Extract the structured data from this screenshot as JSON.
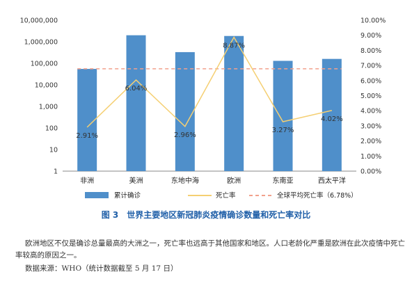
{
  "chart_data": {
    "type": "bar",
    "categories": [
      "非洲",
      "美洲",
      "东地中海",
      "欧洲",
      "东南亚",
      "西太平洋"
    ],
    "series": [
      {
        "name": "累计确诊",
        "type": "bar",
        "axis": "left",
        "values": [
          55000,
          2000000,
          330000,
          1850000,
          130000,
          160000
        ],
        "color": "#4f8fca"
      },
      {
        "name": "死亡率",
        "type": "line",
        "axis": "right",
        "values": [
          2.91,
          6.04,
          2.96,
          8.87,
          3.27,
          4.02
        ],
        "color": "#f5cf72"
      },
      {
        "name": "全球平均死亡率（6.78%）",
        "type": "reference",
        "axis": "right",
        "value": 6.78,
        "color": "#f2a18c"
      }
    ],
    "data_labels": [
      "2.91%",
      "6.04%",
      "2.96%",
      "8.87%",
      "3.27%",
      "4.02%"
    ],
    "y_left": {
      "scale": "log",
      "range": [
        1,
        10000000
      ],
      "ticks": [
        "1",
        "10",
        "100",
        "1,000",
        "10,000",
        "100,000",
        "1,000,000",
        "10,000,000"
      ]
    },
    "y_right": {
      "range": [
        0,
        10
      ],
      "ticks": [
        "0.00%",
        "1.00%",
        "2.00%",
        "3.00%",
        "4.00%",
        "5.00%",
        "6.00%",
        "7.00%",
        "8.00%",
        "9.00%",
        "10.00%"
      ]
    },
    "title": "图 3　世界主要地区新冠肺炎疫情确诊数量和死亡率对比",
    "legend_position": "bottom"
  },
  "note": "欧洲地区不仅是确诊总量最高的大洲之一，死亡率也远高于其他国家和地区。人口老龄化严重是欧洲在此次疫情中死亡率较高的原因之一。",
  "source": "数据来源：WHO（统计数据截至 5 月 17 日）"
}
